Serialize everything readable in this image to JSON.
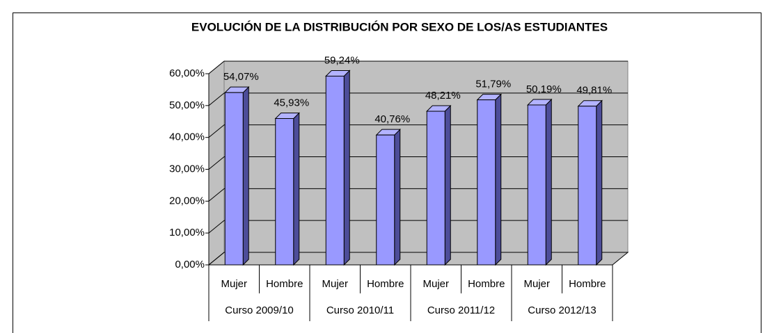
{
  "chart_data": {
    "type": "bar3d",
    "title": "EVOLUCIÓN  DE LA DISTRIBUCIÓN POR SEXO DE LOS/AS ESTUDIANTES",
    "categories": [
      "Mujer",
      "Hombre",
      "Mujer",
      "Hombre",
      "Mujer",
      "Hombre",
      "Mujer",
      "Hombre"
    ],
    "groups": [
      "Curso 2009/10",
      "Curso 2010/11",
      "Curso 2011/12",
      "Curso 2012/13"
    ],
    "values": [
      54.07,
      45.93,
      59.24,
      40.76,
      48.21,
      51.79,
      50.19,
      49.81
    ],
    "value_labels": [
      "54,07%",
      "45,93%",
      "59,24%",
      "40,76%",
      "48,21%",
      "51,79%",
      "50,19%",
      "49,81%"
    ],
    "color": "#9999ff",
    "ylim": [
      0,
      60
    ],
    "yticks": [
      {
        "value": 0,
        "label": "0,00%"
      },
      {
        "value": 10,
        "label": "10,00%"
      },
      {
        "value": 20,
        "label": "20,00%"
      },
      {
        "value": 30,
        "label": "30,00%"
      },
      {
        "value": 40,
        "label": "40,00%"
      },
      {
        "value": 50,
        "label": "50,00%"
      },
      {
        "value": 60,
        "label": "60,00%"
      }
    ],
    "grid": true
  }
}
